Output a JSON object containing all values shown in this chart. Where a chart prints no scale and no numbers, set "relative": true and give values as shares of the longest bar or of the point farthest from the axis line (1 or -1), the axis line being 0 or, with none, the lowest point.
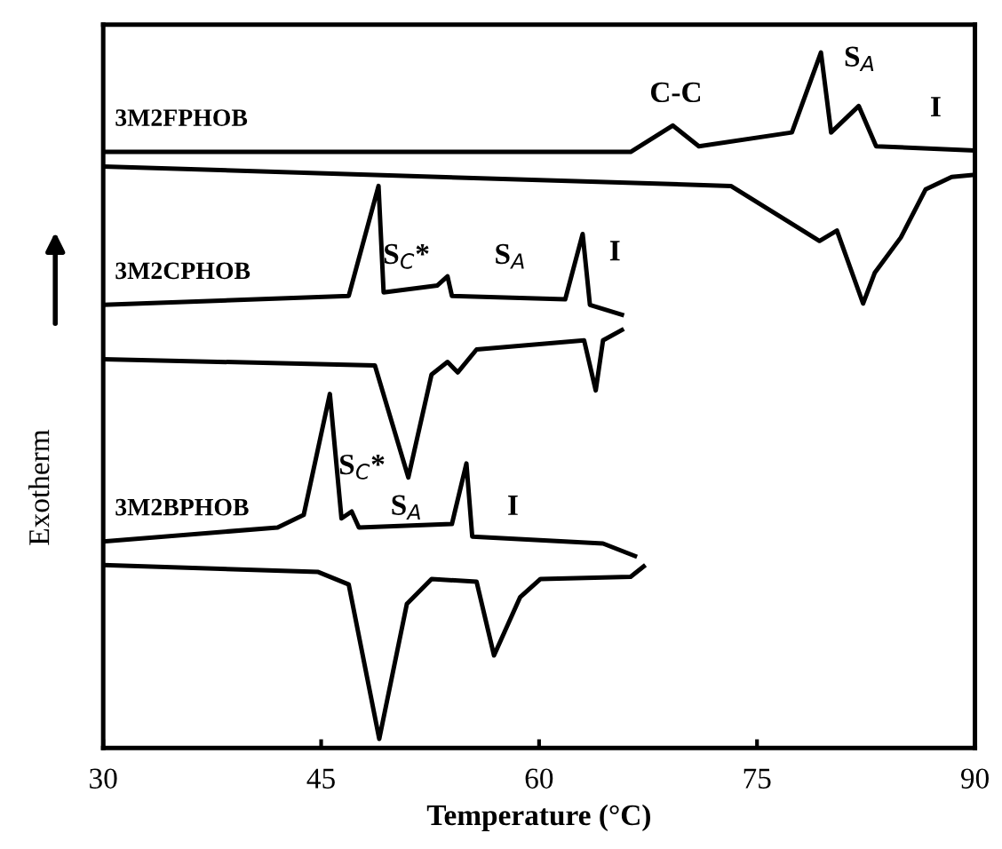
{
  "chart_data": {
    "type": "line",
    "relative": true,
    "xlabel": "Temperature (°C)",
    "ylabel": "Exotherm",
    "xlim": [
      30,
      90
    ],
    "xticks": [
      30,
      45,
      60,
      75,
      90
    ],
    "legend": false,
    "grid": false,
    "marker": "none",
    "line_style": "solid",
    "series": [
      {
        "name": "3M2FPHOB",
        "color": "#000000",
        "x": [
          30,
          66.3,
          69.2,
          71,
          77.4,
          79.4,
          80.1,
          82,
          83.2,
          90
        ],
        "values": [
          0.857,
          0.857,
          0.895,
          0.865,
          0.885,
          1.0,
          0.885,
          0.923,
          0.865,
          0.859
        ]
      },
      {
        "color": "#000000",
        "x": [
          30,
          73.2,
          79.3,
          80.5,
          82.3,
          83.1,
          84.9,
          86.6,
          88.4,
          90
        ],
        "values": [
          0.836,
          0.808,
          0.729,
          0.744,
          0.639,
          0.683,
          0.734,
          0.803,
          0.821,
          0.824
        ]
      },
      {
        "name": "3M2CPHOB",
        "color": "#000000",
        "x": [
          30,
          46.9,
          48.95,
          49.3,
          53.0,
          53.7,
          54.0,
          61.8,
          63.0,
          63.5,
          65.7
        ],
        "values": [
          0.637,
          0.65,
          0.808,
          0.655,
          0.665,
          0.678,
          0.65,
          0.645,
          0.739,
          0.637,
          0.623
        ]
      },
      {
        "color": "#000000",
        "x": [
          30,
          48.7,
          51.0,
          52.6,
          53.7,
          54.4,
          55.7,
          63.1,
          63.9,
          64.4,
          65.7
        ],
        "values": [
          0.559,
          0.55,
          0.389,
          0.537,
          0.555,
          0.54,
          0.573,
          0.586,
          0.514,
          0.586,
          0.601
        ]
      },
      {
        "name": "3M2BPHOB",
        "color": "#000000",
        "x": [
          30,
          42,
          43.8,
          45.6,
          46.4,
          47.1,
          47.6,
          54.0,
          55.0,
          55.4,
          64.4,
          66.6
        ],
        "values": [
          0.297,
          0.317,
          0.335,
          0.509,
          0.33,
          0.34,
          0.317,
          0.322,
          0.409,
          0.304,
          0.294,
          0.276
        ]
      },
      {
        "color": "#000000",
        "x": [
          30,
          44.8,
          46.9,
          49.0,
          50.9,
          52.6,
          55.7,
          56.9,
          58.7,
          60.1,
          66.3,
          67.2
        ],
        "values": [
          0.263,
          0.253,
          0.235,
          0.013,
          0.207,
          0.243,
          0.239,
          0.133,
          0.217,
          0.243,
          0.246,
          0.261
        ]
      }
    ],
    "annotations": [
      "C-C",
      "S$_{A}$",
      "I",
      "S$_{C}$*",
      "S$_{A}$",
      "I",
      "S$_{C}$*",
      "S$_{A}$",
      "I"
    ]
  }
}
